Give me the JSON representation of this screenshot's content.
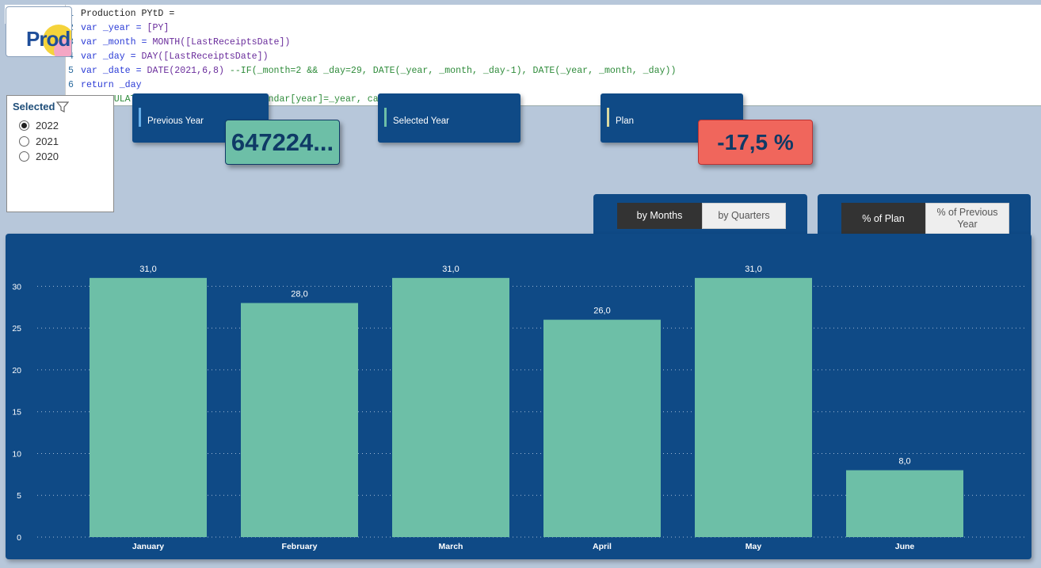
{
  "formula_bar": {
    "cancel_icon": "close-icon",
    "commit_icon": "check-icon",
    "lines": [
      {
        "num": "1",
        "parts": [
          {
            "t": "Production PYtD =",
            "c": "code"
          }
        ]
      },
      {
        "num": "2",
        "parts": [
          {
            "t": "var _year = ",
            "c": "c-kw"
          },
          {
            "t": "[PY]",
            "c": "c-fn"
          }
        ]
      },
      {
        "num": "3",
        "parts": [
          {
            "t": "var _month = ",
            "c": "c-kw"
          },
          {
            "t": "MONTH([LastReceiptsDate])",
            "c": "c-fn"
          }
        ]
      },
      {
        "num": "4",
        "parts": [
          {
            "t": "var _day = ",
            "c": "c-kw"
          },
          {
            "t": "DAY([LastReceiptsDate])",
            "c": "c-fn"
          }
        ]
      },
      {
        "num": "5",
        "parts": [
          {
            "t": "var _date = ",
            "c": "c-kw"
          },
          {
            "t": "DATE(2021,6,8) ",
            "c": "c-fn"
          },
          {
            "t": "--IF(_month=2 && _day=29, DATE(_year, _month, _day-1), DATE(_year, _month, _day))",
            "c": "c-cm"
          }
        ]
      },
      {
        "num": "6",
        "parts": [
          {
            "t": "return _day",
            "c": "c-kw"
          }
        ]
      },
      {
        "num": "7",
        "parts": [
          {
            "t": "--CALCULATE([Receipts Total], calendar[year]=_year, calendar[date]<=_date)",
            "c": "c-cm"
          }
        ]
      }
    ]
  },
  "logo": {
    "text": "Prod"
  },
  "slicer": {
    "title": "Selected",
    "filter_icon": "filter-icon",
    "options": [
      {
        "label": "2022",
        "selected": true
      },
      {
        "label": "2021",
        "selected": false
      },
      {
        "label": "2020",
        "selected": false
      }
    ]
  },
  "kpis": {
    "previous_year": {
      "label": "Previous Year"
    },
    "selected_year": {
      "label": "Selected Year"
    },
    "plan": {
      "label": "Plan"
    },
    "previous_year_value": "647224...",
    "plan_diff_value": "-17,5 %"
  },
  "toggles": {
    "period": {
      "by_months": "by Months",
      "by_quarters": "by Quarters",
      "active": "by Months"
    },
    "compare": {
      "pct_plan": "% of Plan",
      "pct_prev_year": "% of Previous Year",
      "active": "% of Plan"
    }
  },
  "colors": {
    "bar": "#6dbfa7",
    "panel": "#0f4a86",
    "badge_red": "#f0665c"
  },
  "chart_data": {
    "type": "bar",
    "categories": [
      "January",
      "February",
      "March",
      "April",
      "May",
      "June"
    ],
    "values": [
      31.0,
      28.0,
      31.0,
      26.0,
      31.0,
      8.0
    ],
    "data_labels": [
      "31,0",
      "28,0",
      "31,0",
      "26,0",
      "31,0",
      "8,0"
    ],
    "yticks": [
      0,
      5,
      10,
      15,
      20,
      25,
      30
    ],
    "ylim": [
      0,
      32.5
    ],
    "grid": true,
    "title": "",
    "xlabel": "",
    "ylabel": ""
  }
}
